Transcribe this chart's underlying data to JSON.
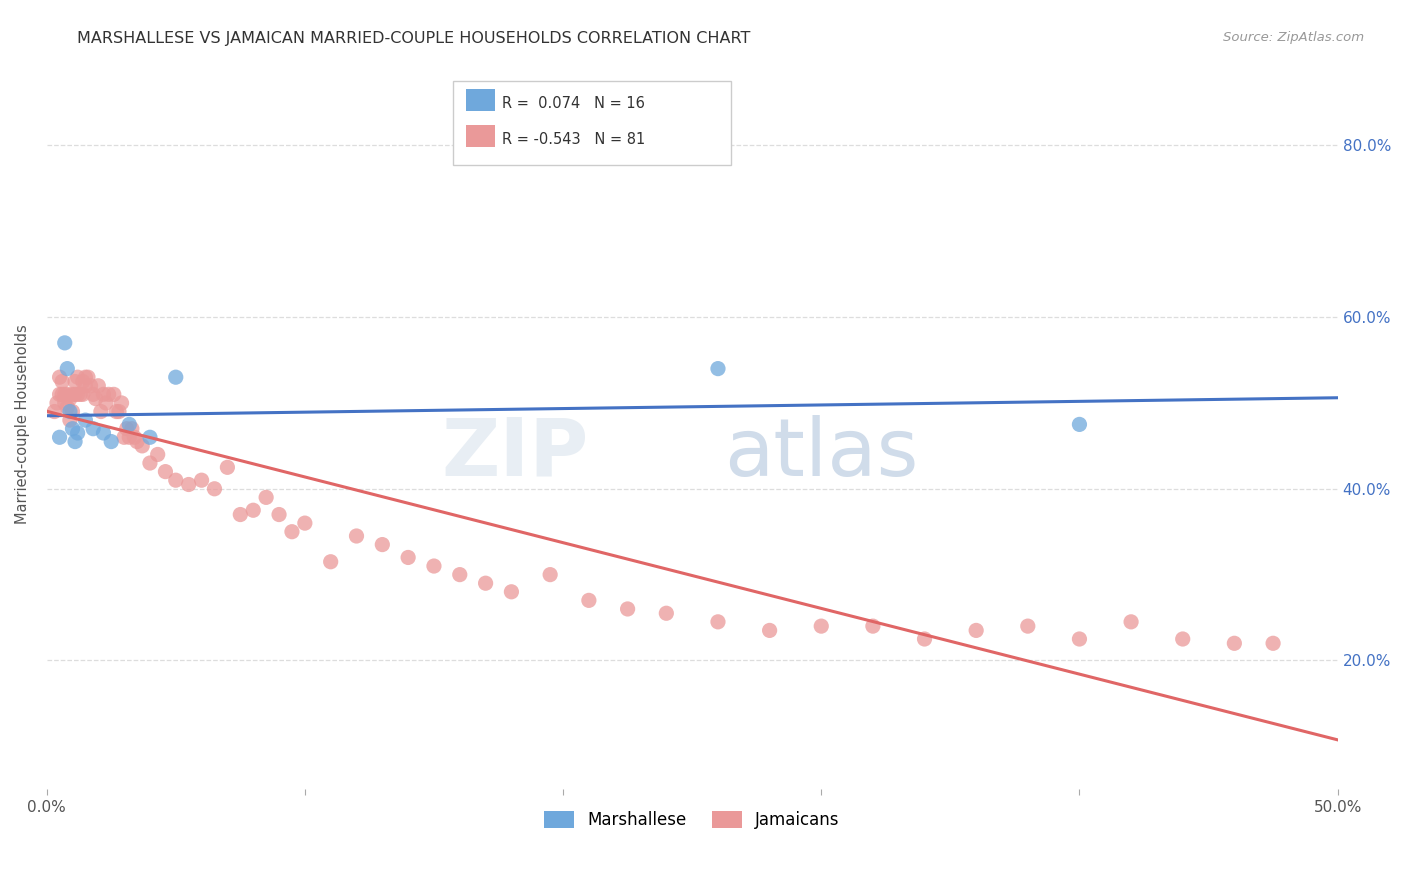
{
  "title": "MARSHALLESE VS JAMAICAN MARRIED-COUPLE HOUSEHOLDS CORRELATION CHART",
  "source": "Source: ZipAtlas.com",
  "ylabel": "Married-couple Households",
  "xlim": [
    0.0,
    0.5
  ],
  "ylim": [
    0.05,
    0.9
  ],
  "xtick_positions": [
    0.0,
    0.1,
    0.2,
    0.3,
    0.4,
    0.5
  ],
  "xtick_labels": [
    "0.0%",
    "",
    "",
    "",
    "",
    "50.0%"
  ],
  "yticks": [
    0.2,
    0.4,
    0.6,
    0.8
  ],
  "ytick_labels": [
    "20.0%",
    "40.0%",
    "60.0%",
    "80.0%"
  ],
  "marshallese_color": "#6fa8dc",
  "jamaicans_color": "#ea9999",
  "marshallese_line_color": "#4472c4",
  "jamaicans_line_color": "#e06666",
  "R_marshallese": 0.074,
  "N_marshallese": 16,
  "R_jamaicans": -0.543,
  "N_jamaicans": 81,
  "background_color": "#ffffff",
  "grid_color": "#dddddd",
  "marshallese_x": [
    0.005,
    0.007,
    0.008,
    0.009,
    0.01,
    0.011,
    0.012,
    0.015,
    0.018,
    0.022,
    0.025,
    0.032,
    0.04,
    0.05,
    0.26,
    0.4
  ],
  "marshallese_y": [
    0.46,
    0.57,
    0.54,
    0.49,
    0.47,
    0.455,
    0.465,
    0.48,
    0.47,
    0.465,
    0.455,
    0.475,
    0.46,
    0.53,
    0.54,
    0.475
  ],
  "jamaicans_x": [
    0.003,
    0.004,
    0.005,
    0.005,
    0.006,
    0.006,
    0.007,
    0.007,
    0.008,
    0.008,
    0.009,
    0.009,
    0.01,
    0.01,
    0.011,
    0.011,
    0.012,
    0.012,
    0.013,
    0.014,
    0.014,
    0.015,
    0.015,
    0.016,
    0.017,
    0.018,
    0.019,
    0.02,
    0.021,
    0.022,
    0.023,
    0.024,
    0.026,
    0.027,
    0.028,
    0.029,
    0.03,
    0.031,
    0.032,
    0.033,
    0.034,
    0.035,
    0.037,
    0.04,
    0.043,
    0.046,
    0.05,
    0.055,
    0.06,
    0.065,
    0.07,
    0.075,
    0.08,
    0.085,
    0.09,
    0.095,
    0.1,
    0.11,
    0.12,
    0.13,
    0.14,
    0.15,
    0.16,
    0.17,
    0.18,
    0.195,
    0.21,
    0.225,
    0.24,
    0.26,
    0.28,
    0.3,
    0.32,
    0.34,
    0.36,
    0.38,
    0.4,
    0.42,
    0.44,
    0.46,
    0.475
  ],
  "jamaicans_y": [
    0.49,
    0.5,
    0.53,
    0.51,
    0.51,
    0.525,
    0.51,
    0.5,
    0.495,
    0.51,
    0.505,
    0.48,
    0.51,
    0.49,
    0.51,
    0.525,
    0.51,
    0.53,
    0.51,
    0.525,
    0.51,
    0.53,
    0.52,
    0.53,
    0.52,
    0.51,
    0.505,
    0.52,
    0.49,
    0.51,
    0.5,
    0.51,
    0.51,
    0.49,
    0.49,
    0.5,
    0.46,
    0.47,
    0.46,
    0.47,
    0.46,
    0.455,
    0.45,
    0.43,
    0.44,
    0.42,
    0.41,
    0.405,
    0.41,
    0.4,
    0.425,
    0.37,
    0.375,
    0.39,
    0.37,
    0.35,
    0.36,
    0.315,
    0.345,
    0.335,
    0.32,
    0.31,
    0.3,
    0.29,
    0.28,
    0.3,
    0.27,
    0.26,
    0.255,
    0.245,
    0.235,
    0.24,
    0.24,
    0.225,
    0.235,
    0.24,
    0.225,
    0.245,
    0.225,
    0.22,
    0.22
  ]
}
